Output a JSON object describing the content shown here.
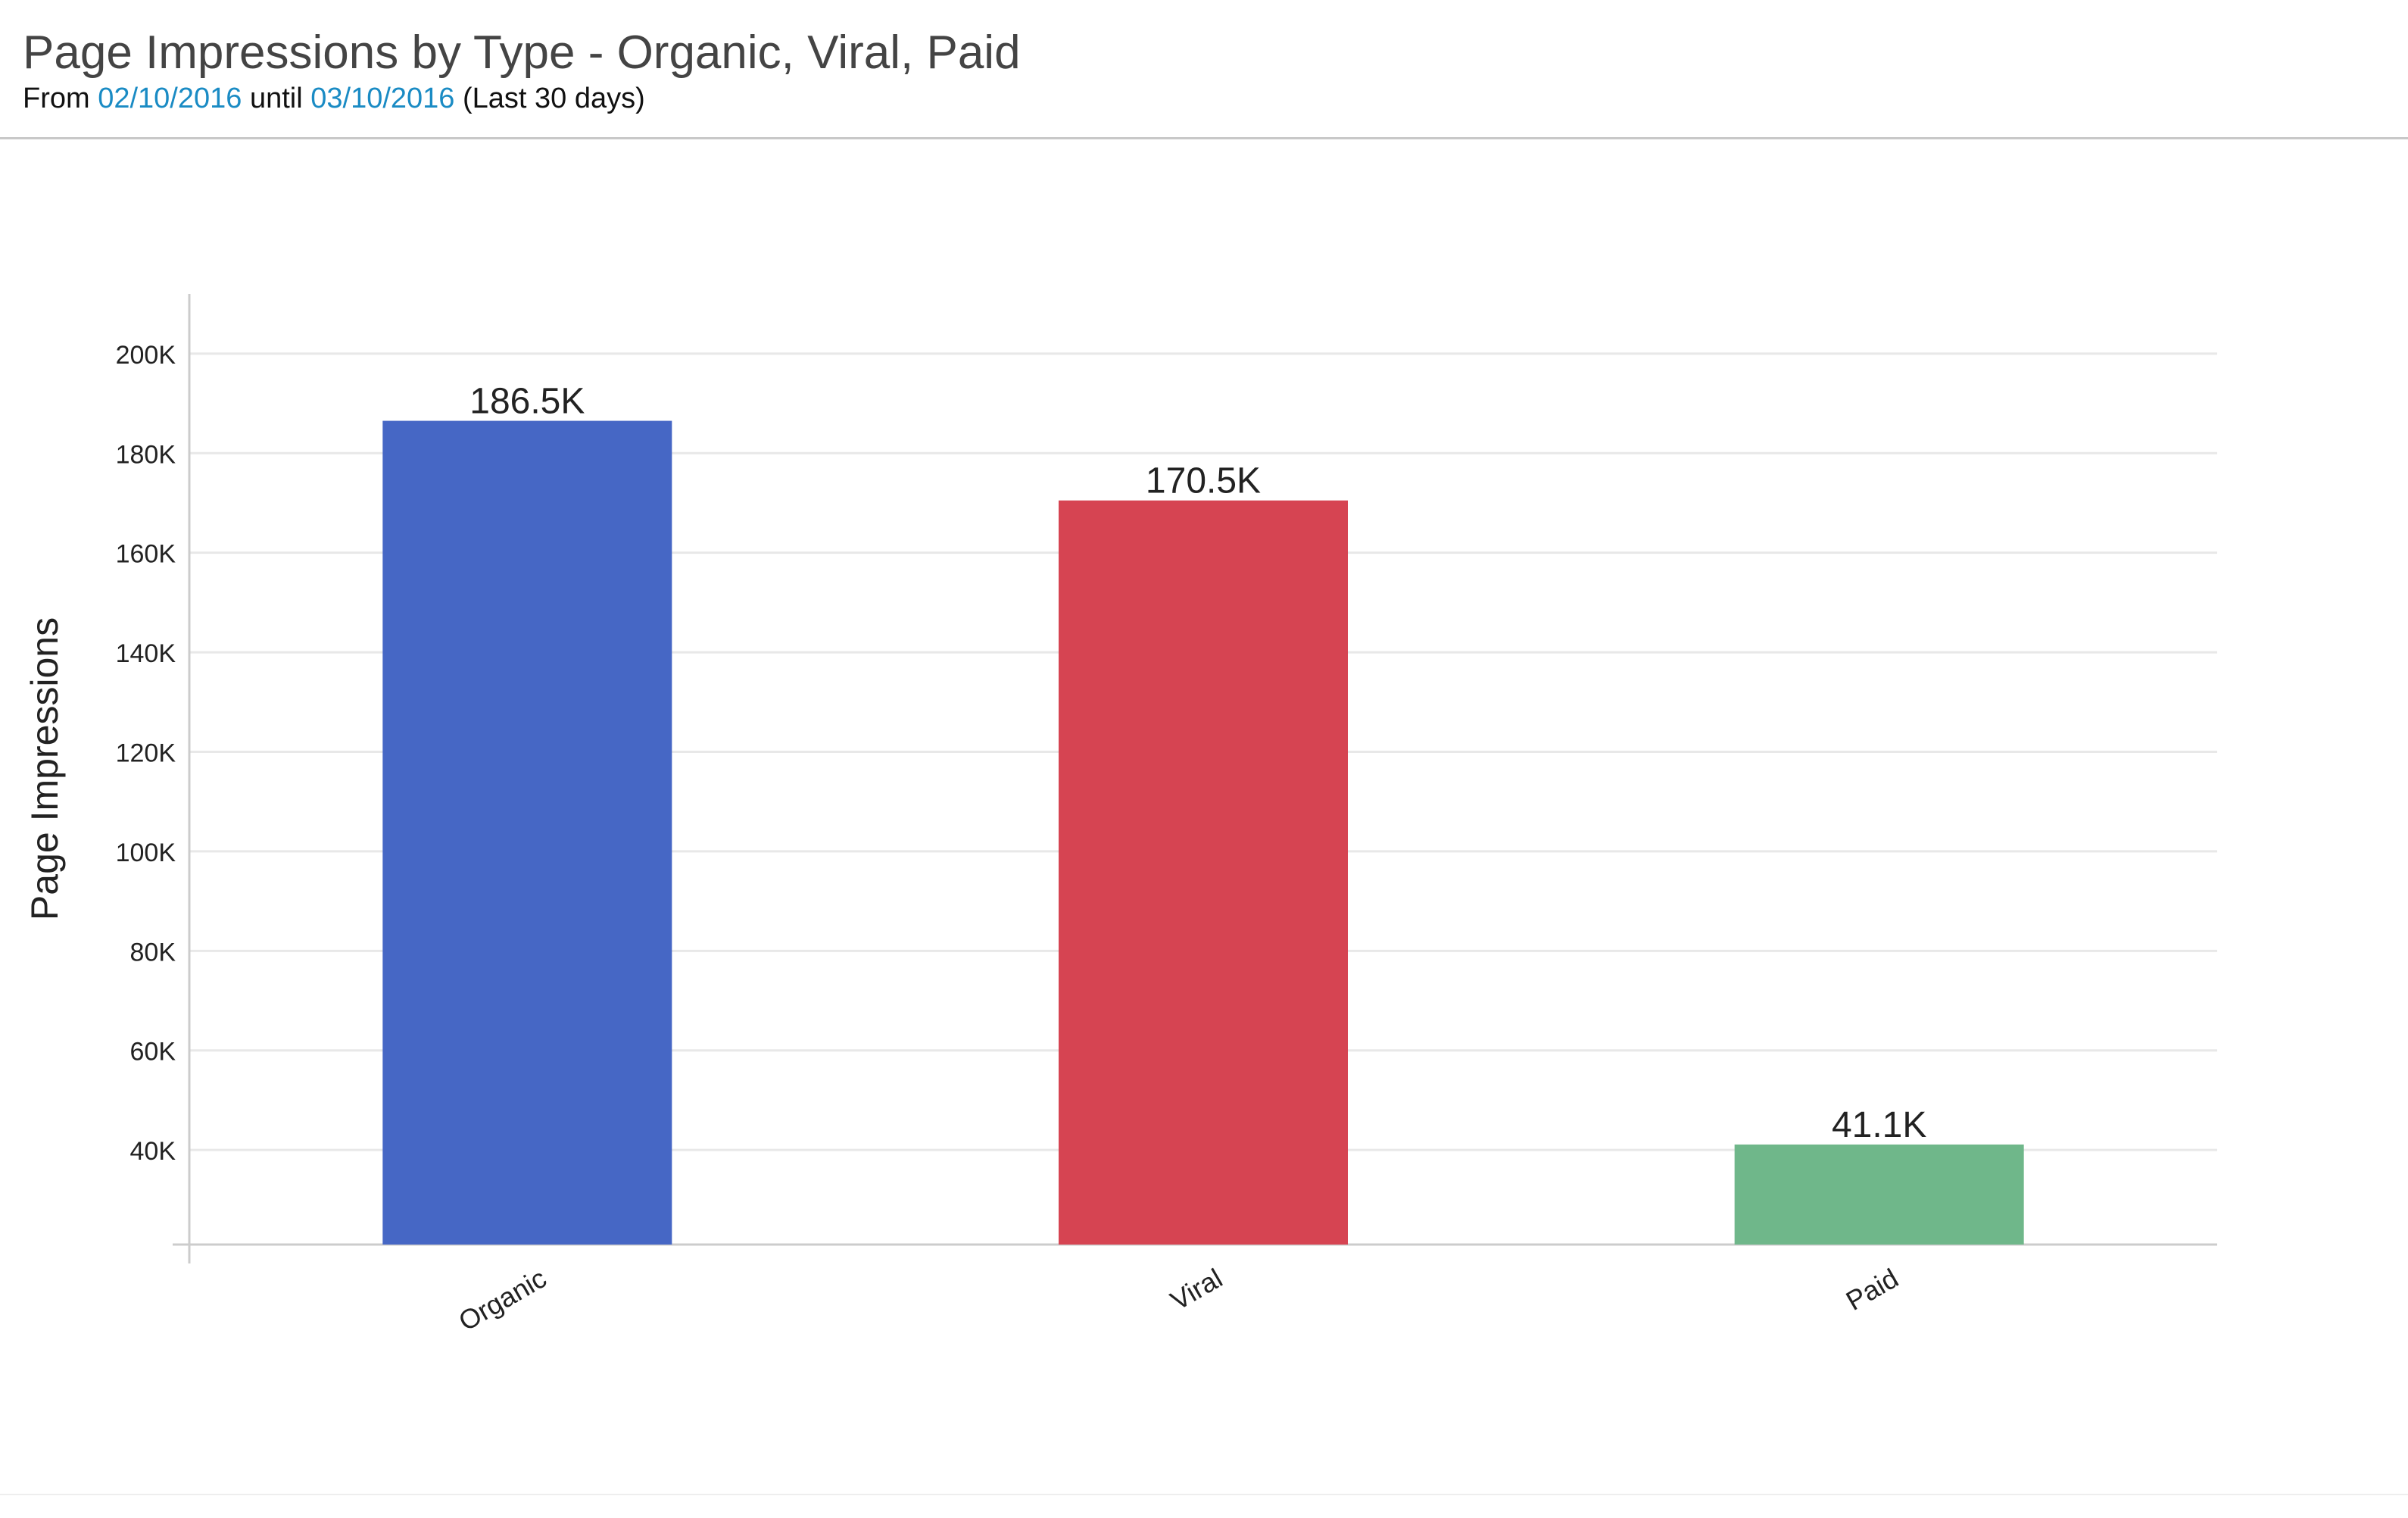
{
  "header": {
    "title": "Page Impressions by Type - Organic, Viral, Paid",
    "subtitle_from": "From",
    "start_date": "02/10/2016",
    "subtitle_until": "until",
    "end_date": "03/10/2016",
    "subtitle_range": "(Last 30 days)"
  },
  "chart_data": {
    "type": "bar",
    "categories": [
      "Organic",
      "Viral",
      "Paid"
    ],
    "values": [
      186500,
      170500,
      41100
    ],
    "value_labels": [
      "186.5K",
      "170.5K",
      "41.1K"
    ],
    "colors": [
      "#4667c5",
      "#d64452",
      "#6fb78a"
    ],
    "ylabel": "Page Impressions",
    "xlabel": "",
    "yticks": [
      40000,
      60000,
      80000,
      100000,
      120000,
      140000,
      160000,
      180000,
      200000
    ],
    "ytick_labels": [
      "40K",
      "60K",
      "80K",
      "100K",
      "120K",
      "140K",
      "160K",
      "180K",
      "200K"
    ],
    "ylim": [
      21000,
      212000
    ],
    "grid": true,
    "legend": "none"
  }
}
